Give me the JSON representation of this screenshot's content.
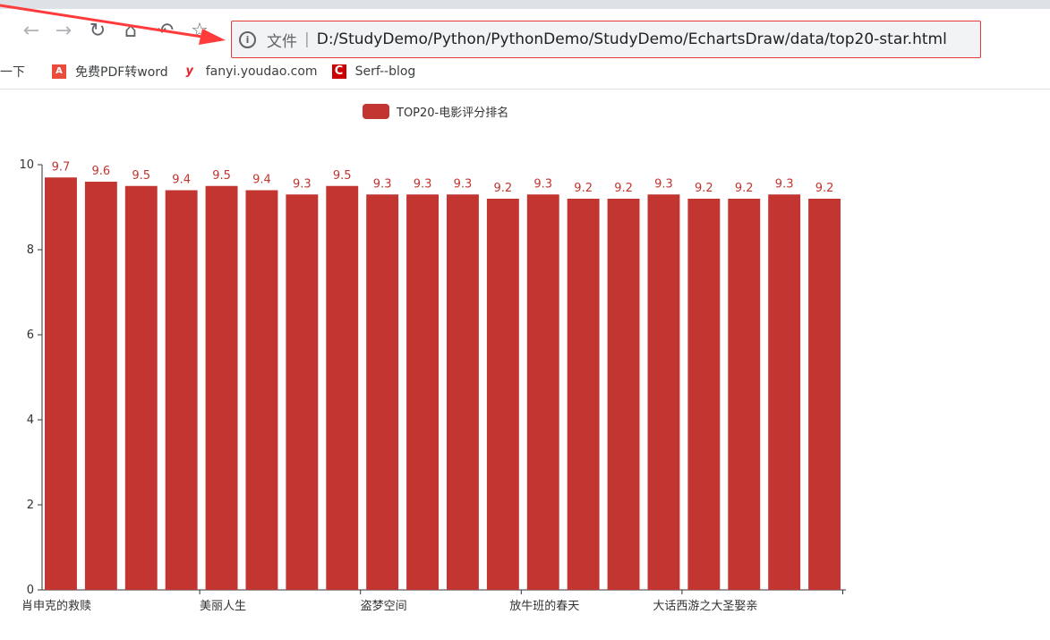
{
  "browser": {
    "address_scheme": "文件",
    "address_url": "D:/StudyDemo/Python/PythonDemo/StudyDemo/EchartsDraw/data/top20-star.html",
    "bookmarks": [
      {
        "label": "一下",
        "icon": "search-icon"
      },
      {
        "label": "免费PDF转word",
        "icon": "pdf-icon"
      },
      {
        "label": "fanyi.youdao.com",
        "icon": "youdao-icon"
      },
      {
        "label": "Serf--blog",
        "icon": "csdn-icon"
      }
    ],
    "annotation_color": "#ff3b3b"
  },
  "chart_data": {
    "type": "bar",
    "legend": [
      "TOP20-电影评分排名"
    ],
    "legend_position": "top-center",
    "categories": [
      "肖申克的救赎",
      "",
      "",
      "",
      "美丽人生",
      "",
      "",
      "",
      "盗梦空间",
      "",
      "",
      "",
      "放牛班的春天",
      "",
      "",
      "",
      "大话西游之大圣娶亲",
      "",
      "",
      ""
    ],
    "series": [
      {
        "name": "TOP20-电影评分排名",
        "color": "#c23531",
        "values": [
          9.7,
          9.6,
          9.5,
          9.4,
          9.5,
          9.4,
          9.3,
          9.5,
          9.3,
          9.3,
          9.3,
          9.2,
          9.3,
          9.2,
          9.2,
          9.3,
          9.2,
          9.2,
          9.3,
          9.2
        ]
      }
    ],
    "ylim": [
      0,
      10
    ],
    "yticks": [
      0,
      2,
      4,
      6,
      8,
      10
    ],
    "grid": false,
    "data_labels": true
  }
}
